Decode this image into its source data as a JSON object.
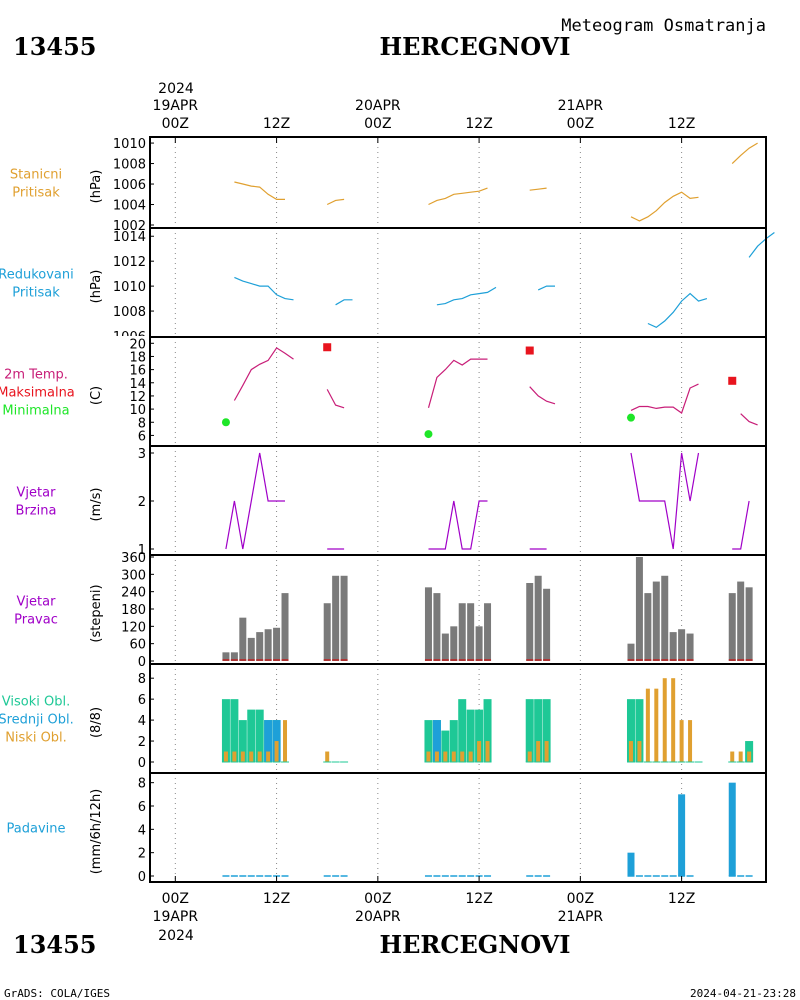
{
  "header": {
    "title": "Meteogram Osmatranja",
    "station_id": "13455",
    "station_name": "HERCEGNOVI"
  },
  "footer": {
    "station_id": "13455",
    "station_name": "HERCEGNOVI",
    "credit": "GrADS: COLA/IGES",
    "timestamp": "2024-04-21-23:28"
  },
  "time_axis": {
    "year": "2024",
    "day_labels": [
      "19APR",
      "20APR",
      "21APR"
    ],
    "tick_labels": [
      "00Z",
      "12Z",
      "00Z",
      "12Z",
      "00Z",
      "12Z"
    ],
    "tick_hours": [
      0,
      12,
      24,
      36,
      48,
      60
    ],
    "range_hours": [
      -3,
      70
    ]
  },
  "colors": {
    "orange": "#e0a030",
    "blue": "#1ea0d8",
    "red": "#e8141e",
    "green": "#1ee628",
    "purple": "#a000c8",
    "magenta": "#c81e78",
    "cyan_green": "#1ec896",
    "gray": "#7a7a7a",
    "dark_red": "#c02020"
  },
  "panels": {
    "station_pressure": {
      "label_lines": [
        "Stanicni",
        "Pritisak"
      ],
      "unit": "(hPa)",
      "ticks": [
        "1002",
        "1004",
        "1006",
        "1008",
        "1010"
      ]
    },
    "reduced_pressure": {
      "label_lines": [
        "Redukovani",
        "Pritisak"
      ],
      "unit": "(hPa)",
      "ticks": [
        "1008",
        "1010",
        "1012",
        "1014"
      ],
      "clipped_tick": "1006"
    },
    "temperature": {
      "label_lines": [
        "2m Temp.",
        "Maksimalna",
        "Minimalna"
      ],
      "unit": "(C)",
      "ticks": [
        "6",
        "8",
        "10",
        "12",
        "14",
        "16",
        "18",
        "20"
      ]
    },
    "wind_speed": {
      "label_lines": [
        "Vjetar",
        "Brzina"
      ],
      "unit": "(m/s)",
      "ticks": [
        "1",
        "2",
        "3"
      ]
    },
    "wind_direction": {
      "label_lines": [
        "Vjetar",
        "Pravac"
      ],
      "unit": "(stepeni)",
      "ticks": [
        "0",
        "60",
        "120",
        "180",
        "240",
        "300",
        "360"
      ]
    },
    "clouds": {
      "label_lines": [
        "Visoki Obl.",
        "Srednji Obl.",
        "Niski Obl."
      ],
      "unit": "(8/8)",
      "ticks": [
        "0",
        "2",
        "4",
        "6",
        "8"
      ]
    },
    "precip": {
      "label_lines": [
        "Padavine"
      ],
      "unit": "(mm/6h/12h)",
      "ticks": [
        "0",
        "2",
        "4",
        "6",
        "8"
      ]
    }
  },
  "chart_data": [
    {
      "type": "line",
      "title": "Stanicni Pritisak",
      "ylabel": "(hPa)",
      "ylim": [
        1002,
        1010.3
      ],
      "series": [
        {
          "name": "Stanicni Pritisak",
          "segments": [
            [
              [
                7,
                1006.2
              ],
              [
                8,
                1006.0
              ],
              [
                9,
                1005.8
              ],
              [
                10,
                1005.7
              ],
              [
                11,
                1005.0
              ],
              [
                12,
                1004.5
              ],
              [
                13,
                1004.5
              ]
            ],
            [
              [
                18,
                1004.0
              ],
              [
                19,
                1004.4
              ],
              [
                20,
                1004.5
              ]
            ],
            [
              [
                30,
                1004.0
              ],
              [
                31,
                1004.4
              ],
              [
                32,
                1004.6
              ],
              [
                33,
                1005.0
              ],
              [
                34,
                1005.1
              ],
              [
                35,
                1005.2
              ],
              [
                36,
                1005.3
              ],
              [
                37,
                1005.6
              ]
            ],
            [
              [
                42,
                1005.4
              ],
              [
                43,
                1005.5
              ],
              [
                44,
                1005.6
              ]
            ],
            [
              [
                54,
                1002.8
              ],
              [
                55,
                1002.4
              ],
              [
                56,
                1002.8
              ],
              [
                57,
                1003.4
              ],
              [
                58,
                1004.2
              ],
              [
                59,
                1004.8
              ],
              [
                60,
                1005.2
              ],
              [
                61,
                1004.6
              ],
              [
                62,
                1004.7
              ]
            ],
            [
              [
                66,
                1008.0
              ],
              [
                67,
                1008.8
              ],
              [
                68,
                1009.5
              ],
              [
                69,
                1010.0
              ]
            ]
          ]
        }
      ]
    },
    {
      "type": "line",
      "title": "Redukovani Pritisak",
      "ylabel": "(hPa)",
      "ylim": [
        1006,
        1014.5
      ],
      "series": [
        {
          "name": "Redukovani Pritisak",
          "segments": [
            [
              [
                7,
                1010.7
              ],
              [
                8,
                1010.4
              ],
              [
                9,
                1010.2
              ],
              [
                10,
                1010.0
              ],
              [
                11,
                1010.0
              ],
              [
                12,
                1009.3
              ],
              [
                13,
                1009.0
              ],
              [
                14,
                1008.9
              ]
            ],
            [
              [
                19,
                1008.5
              ],
              [
                20,
                1008.9
              ],
              [
                21,
                1008.9
              ]
            ],
            [
              [
                31,
                1008.5
              ],
              [
                32,
                1008.6
              ],
              [
                33,
                1008.9
              ],
              [
                34,
                1009.0
              ],
              [
                35,
                1009.3
              ],
              [
                36,
                1009.4
              ],
              [
                37,
                1009.5
              ],
              [
                38,
                1009.9
              ]
            ],
            [
              [
                43,
                1009.7
              ],
              [
                44,
                1010.0
              ],
              [
                45,
                1010.0
              ]
            ],
            [
              [
                56,
                1007.0
              ],
              [
                57,
                1006.7
              ],
              [
                58,
                1007.2
              ],
              [
                59,
                1007.9
              ],
              [
                60,
                1008.8
              ],
              [
                61,
                1009.4
              ],
              [
                62,
                1008.8
              ],
              [
                63,
                1009.0
              ]
            ],
            [
              [
                68,
                1012.3
              ],
              [
                69,
                1013.2
              ],
              [
                70,
                1013.8
              ],
              [
                71,
                1014.3
              ]
            ]
          ]
        }
      ]
    },
    {
      "type": "line",
      "title": "2m Temp.",
      "ylabel": "(C)",
      "ylim": [
        5,
        20.5
      ],
      "series": [
        {
          "name": "2m Temp.",
          "segments": [
            [
              [
                7,
                11.3
              ],
              [
                8,
                13.6
              ],
              [
                9,
                16.0
              ],
              [
                10,
                16.8
              ],
              [
                11,
                17.4
              ],
              [
                12,
                19.3
              ],
              [
                13,
                18.5
              ],
              [
                14,
                17.6
              ]
            ],
            [
              [
                18,
                13.0
              ],
              [
                19,
                10.6
              ],
              [
                20,
                10.2
              ]
            ],
            [
              [
                30,
                10.2
              ],
              [
                31,
                14.8
              ],
              [
                32,
                16.0
              ],
              [
                33,
                17.4
              ],
              [
                34,
                16.7
              ],
              [
                35,
                17.6
              ],
              [
                36,
                17.6
              ],
              [
                37,
                17.6
              ]
            ],
            [
              [
                42,
                13.4
              ],
              [
                43,
                12.0
              ],
              [
                44,
                11.2
              ],
              [
                45,
                10.8
              ]
            ],
            [
              [
                54,
                9.8
              ],
              [
                55,
                10.4
              ],
              [
                56,
                10.4
              ],
              [
                57,
                10.1
              ],
              [
                58,
                10.3
              ],
              [
                59,
                10.3
              ],
              [
                60,
                9.4
              ],
              [
                61,
                13.2
              ],
              [
                62,
                13.8
              ]
            ],
            [
              [
                67,
                9.3
              ],
              [
                68,
                8.1
              ],
              [
                69,
                7.6
              ]
            ]
          ]
        },
        {
          "name": "Maksimalna",
          "points": [
            [
              18,
              19.4
            ],
            [
              42,
              18.9
            ],
            [
              66,
              14.3
            ]
          ]
        },
        {
          "name": "Minimalna",
          "points": [
            [
              6,
              8.0
            ],
            [
              30,
              6.2
            ],
            [
              54,
              8.7
            ]
          ]
        }
      ]
    },
    {
      "type": "line",
      "title": "Vjetar Brzina",
      "ylabel": "(m/s)",
      "ylim": [
        1,
        3
      ],
      "series": [
        {
          "name": "Vjetar Brzina",
          "segments": [
            [
              [
                6,
                1
              ],
              [
                7,
                2
              ],
              [
                8,
                1
              ],
              [
                9,
                2
              ],
              [
                10,
                3
              ],
              [
                11,
                2
              ],
              [
                12,
                2
              ],
              [
                13,
                2
              ]
            ],
            [
              [
                18,
                1
              ],
              [
                19,
                1
              ],
              [
                20,
                1
              ]
            ],
            [
              [
                30,
                1
              ],
              [
                31,
                1
              ],
              [
                32,
                1
              ],
              [
                33,
                2
              ],
              [
                34,
                1
              ],
              [
                35,
                1
              ],
              [
                36,
                2
              ],
              [
                37,
                2
              ]
            ],
            [
              [
                42,
                1
              ],
              [
                43,
                1
              ],
              [
                44,
                1
              ]
            ],
            [
              [
                54,
                3
              ],
              [
                55,
                2
              ],
              [
                56,
                2
              ],
              [
                57,
                2
              ],
              [
                58,
                2
              ],
              [
                59,
                1
              ],
              [
                60,
                3
              ],
              [
                61,
                2
              ],
              [
                62,
                3
              ]
            ],
            [
              [
                66,
                1
              ],
              [
                67,
                1
              ],
              [
                68,
                2
              ]
            ]
          ]
        }
      ]
    },
    {
      "type": "bar",
      "title": "Vjetar Pravac",
      "ylabel": "(stepeni)",
      "ylim": [
        0,
        360
      ],
      "x": [
        6,
        7,
        8,
        9,
        10,
        11,
        12,
        13,
        18,
        19,
        20,
        30,
        31,
        32,
        33,
        34,
        35,
        36,
        37,
        42,
        43,
        44,
        54,
        55,
        56,
        57,
        58,
        59,
        60,
        61,
        66,
        67,
        68
      ],
      "values": [
        30,
        30,
        150,
        80,
        100,
        110,
        115,
        235,
        200,
        295,
        295,
        255,
        235,
        95,
        120,
        200,
        200,
        120,
        200,
        270,
        295,
        250,
        60,
        360,
        235,
        275,
        295,
        100,
        110,
        95,
        235,
        275,
        255
      ]
    },
    {
      "type": "bar",
      "title": "Oblaci",
      "ylabel": "(8/8)",
      "ylim": [
        0,
        8.4
      ],
      "x": [
        6,
        7,
        8,
        9,
        10,
        11,
        12,
        13,
        18,
        19,
        20,
        30,
        31,
        32,
        33,
        34,
        35,
        36,
        37,
        42,
        43,
        44,
        54,
        55,
        56,
        57,
        58,
        59,
        60,
        61,
        62,
        66,
        67,
        68
      ],
      "series": [
        {
          "name": "Visoki Obl.",
          "values": [
            6,
            6,
            4,
            5,
            5,
            4,
            4,
            0,
            0,
            0,
            0,
            4,
            4,
            3,
            4,
            6,
            5,
            5,
            6,
            6,
            6,
            6,
            6,
            6,
            0,
            0,
            0,
            0,
            0,
            0,
            0,
            0,
            0,
            2
          ]
        },
        {
          "name": "Srednji Obl.",
          "values": [
            0,
            0,
            0,
            0,
            0,
            4,
            4,
            0,
            0,
            0,
            0,
            0,
            4,
            0,
            0,
            0,
            0,
            0,
            0,
            0,
            0,
            0,
            0,
            0,
            0,
            0,
            0,
            0,
            0,
            0,
            0,
            0,
            0,
            0
          ]
        },
        {
          "name": "Niski Obl.",
          "values": [
            1,
            1,
            1,
            1,
            1,
            1,
            2,
            4,
            1,
            0,
            0,
            1,
            1,
            1,
            1,
            1,
            1,
            2,
            2,
            1,
            2,
            2,
            2,
            2,
            7,
            7,
            8,
            8,
            4,
            4,
            0,
            1,
            1,
            1
          ]
        }
      ]
    },
    {
      "type": "bar",
      "title": "Padavine",
      "ylabel": "(mm/6h/12h)",
      "ylim": [
        0,
        8.4
      ],
      "x": [
        6,
        7,
        8,
        9,
        10,
        11,
        12,
        13,
        18,
        19,
        20,
        30,
        31,
        32,
        33,
        34,
        35,
        36,
        37,
        42,
        43,
        44,
        54,
        55,
        56,
        57,
        58,
        59,
        60,
        61,
        66,
        67,
        68
      ],
      "values": [
        0,
        0,
        0,
        0,
        0,
        0,
        0,
        0,
        0,
        0,
        0,
        0,
        0,
        0,
        0,
        0,
        0,
        0,
        0,
        0,
        0,
        0,
        2,
        0,
        0,
        0,
        0,
        0,
        7,
        0,
        8,
        0,
        0
      ]
    }
  ]
}
